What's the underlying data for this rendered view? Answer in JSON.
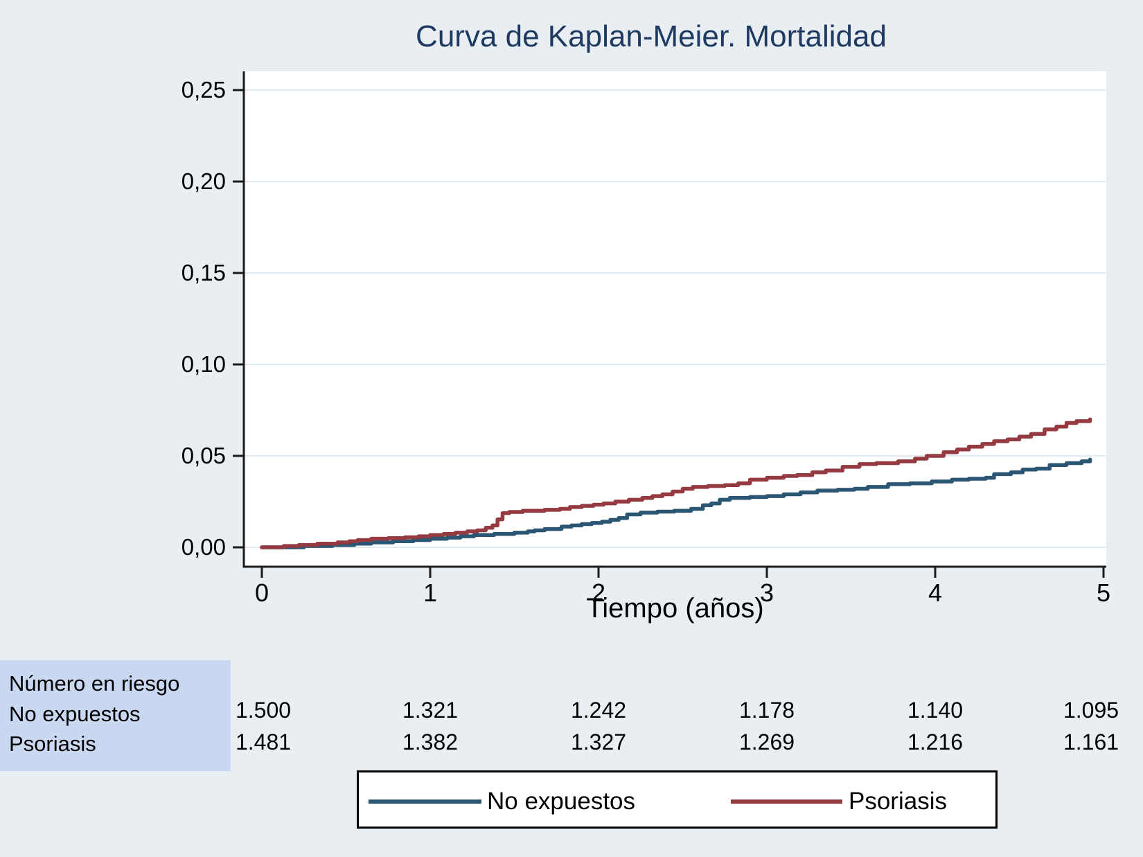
{
  "title": "Curva de Kaplan-Meier. Mortalidad",
  "colors": {
    "page_background": "#e9eef3",
    "plot_background": "#ffffff",
    "gridline": "#e2ebf1",
    "axis": "#1a1a1a",
    "title_navy": "#1f3a60",
    "risk_label_box_background": "#c9d8f0",
    "no_expuestos_line": "#2a5674",
    "psoriasis_line": "#953a41"
  },
  "chart_data": {
    "type": "line",
    "subtype": "kaplan-meier-step",
    "title": "Curva de Kaplan-Meier. Mortalidad",
    "xlabel": "Tiempo (años)",
    "ylabel": "",
    "xlim": [
      0,
      5
    ],
    "ylim": [
      0,
      0.25
    ],
    "grid": true,
    "legend_position": "bottom",
    "xticks": [
      "0",
      "1",
      "2",
      "3",
      "4",
      "5"
    ],
    "xtick_values": [
      0,
      1,
      2,
      3,
      4,
      5
    ],
    "yticks": [
      "0,00",
      "0,05",
      "0,10",
      "0,15",
      "0,20",
      "0,25"
    ],
    "ytick_values": [
      0,
      0.05,
      0.1,
      0.15,
      0.2,
      0.25
    ],
    "series": [
      {
        "name": "No expuestos",
        "color": "#2a5674",
        "points": [
          [
            0,
            0
          ],
          [
            0.25,
            0.0007
          ],
          [
            0.42,
            0.0013
          ],
          [
            0.55,
            0.002
          ],
          [
            0.65,
            0.0027
          ],
          [
            0.78,
            0.0033
          ],
          [
            0.9,
            0.004
          ],
          [
            1.0,
            0.0047
          ],
          [
            1.1,
            0.0053
          ],
          [
            1.18,
            0.006
          ],
          [
            1.26,
            0.0067
          ],
          [
            1.38,
            0.0073
          ],
          [
            1.5,
            0.008
          ],
          [
            1.58,
            0.0087
          ],
          [
            1.62,
            0.0093
          ],
          [
            1.68,
            0.01
          ],
          [
            1.78,
            0.0113
          ],
          [
            1.84,
            0.012
          ],
          [
            1.9,
            0.0127
          ],
          [
            1.96,
            0.0133
          ],
          [
            2.02,
            0.014
          ],
          [
            2.07,
            0.015
          ],
          [
            2.12,
            0.016
          ],
          [
            2.17,
            0.018
          ],
          [
            2.25,
            0.019
          ],
          [
            2.35,
            0.0195
          ],
          [
            2.45,
            0.02
          ],
          [
            2.55,
            0.021
          ],
          [
            2.62,
            0.023
          ],
          [
            2.67,
            0.024
          ],
          [
            2.72,
            0.026
          ],
          [
            2.78,
            0.027
          ],
          [
            2.9,
            0.0275
          ],
          [
            3.0,
            0.028
          ],
          [
            3.1,
            0.029
          ],
          [
            3.2,
            0.03
          ],
          [
            3.3,
            0.031
          ],
          [
            3.42,
            0.0315
          ],
          [
            3.52,
            0.032
          ],
          [
            3.6,
            0.033
          ],
          [
            3.72,
            0.0345
          ],
          [
            3.85,
            0.035
          ],
          [
            3.98,
            0.036
          ],
          [
            4.1,
            0.037
          ],
          [
            4.2,
            0.0375
          ],
          [
            4.3,
            0.038
          ],
          [
            4.35,
            0.04
          ],
          [
            4.45,
            0.041
          ],
          [
            4.52,
            0.0425
          ],
          [
            4.6,
            0.043
          ],
          [
            4.68,
            0.045
          ],
          [
            4.78,
            0.046
          ],
          [
            4.87,
            0.047
          ],
          [
            4.92,
            0.048
          ]
        ]
      },
      {
        "name": "Psoriasis",
        "color": "#953a41",
        "points": [
          [
            0,
            0
          ],
          [
            0.13,
            0.0007
          ],
          [
            0.22,
            0.0013
          ],
          [
            0.33,
            0.002
          ],
          [
            0.45,
            0.0027
          ],
          [
            0.52,
            0.0033
          ],
          [
            0.57,
            0.004
          ],
          [
            0.65,
            0.0047
          ],
          [
            0.75,
            0.005
          ],
          [
            0.85,
            0.0055
          ],
          [
            0.93,
            0.006
          ],
          [
            1.0,
            0.0067
          ],
          [
            1.08,
            0.0073
          ],
          [
            1.15,
            0.008
          ],
          [
            1.22,
            0.0087
          ],
          [
            1.28,
            0.0093
          ],
          [
            1.33,
            0.0107
          ],
          [
            1.37,
            0.012
          ],
          [
            1.4,
            0.0153
          ],
          [
            1.43,
            0.0187
          ],
          [
            1.47,
            0.0193
          ],
          [
            1.55,
            0.02
          ],
          [
            1.68,
            0.0205
          ],
          [
            1.77,
            0.021
          ],
          [
            1.83,
            0.022
          ],
          [
            1.9,
            0.0227
          ],
          [
            1.97,
            0.0233
          ],
          [
            2.03,
            0.024
          ],
          [
            2.1,
            0.025
          ],
          [
            2.18,
            0.026
          ],
          [
            2.26,
            0.027
          ],
          [
            2.32,
            0.028
          ],
          [
            2.38,
            0.029
          ],
          [
            2.44,
            0.0305
          ],
          [
            2.5,
            0.032
          ],
          [
            2.56,
            0.033
          ],
          [
            2.65,
            0.0335
          ],
          [
            2.75,
            0.034
          ],
          [
            2.83,
            0.035
          ],
          [
            2.9,
            0.037
          ],
          [
            3.0,
            0.038
          ],
          [
            3.1,
            0.039
          ],
          [
            3.18,
            0.0395
          ],
          [
            3.27,
            0.041
          ],
          [
            3.35,
            0.042
          ],
          [
            3.45,
            0.044
          ],
          [
            3.55,
            0.0455
          ],
          [
            3.65,
            0.046
          ],
          [
            3.78,
            0.047
          ],
          [
            3.88,
            0.0485
          ],
          [
            3.95,
            0.05
          ],
          [
            4.05,
            0.052
          ],
          [
            4.13,
            0.0535
          ],
          [
            4.2,
            0.055
          ],
          [
            4.28,
            0.0565
          ],
          [
            4.35,
            0.058
          ],
          [
            4.43,
            0.059
          ],
          [
            4.5,
            0.0605
          ],
          [
            4.57,
            0.062
          ],
          [
            4.65,
            0.0645
          ],
          [
            4.72,
            0.066
          ],
          [
            4.78,
            0.068
          ],
          [
            4.84,
            0.069
          ],
          [
            4.92,
            0.07
          ]
        ]
      }
    ]
  },
  "risk_table": {
    "header": "Número en riesgo",
    "rows": [
      {
        "label": "No expuestos",
        "values": [
          "1.500",
          "1.321",
          "1.242",
          "1.178",
          "1.140",
          "1.095"
        ]
      },
      {
        "label": "Psoriasis",
        "values": [
          "1.481",
          "1.382",
          "1.327",
          "1.269",
          "1.216",
          "1.161"
        ]
      }
    ]
  },
  "legend": {
    "items": [
      {
        "label": "No expuestos",
        "color": "#2a5674"
      },
      {
        "label": "Psoriasis",
        "color": "#953a41"
      }
    ]
  }
}
